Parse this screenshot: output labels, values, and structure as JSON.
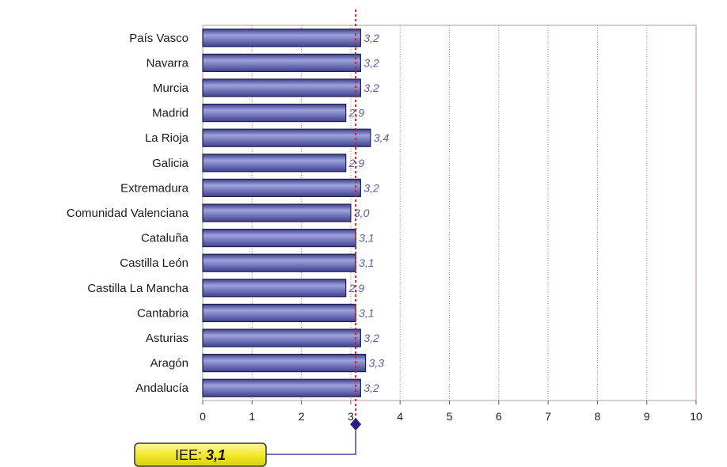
{
  "chart_data": {
    "type": "bar",
    "orientation": "horizontal",
    "categories": [
      "País Vasco",
      "Navarra",
      "Murcia",
      "Madrid",
      "La Rioja",
      "Galicia",
      "Extremadura",
      "Comunidad Valenciana",
      "Cataluña",
      "Castilla León",
      "Castilla La Mancha",
      "Cantabria",
      "Asturias",
      "Aragón",
      "Andalucía"
    ],
    "values": [
      3.2,
      3.2,
      3.2,
      2.9,
      3.4,
      2.9,
      3.2,
      3.0,
      3.1,
      3.1,
      2.9,
      3.1,
      3.2,
      3.3,
      3.2
    ],
    "value_labels": [
      "3,2",
      "3,2",
      "3,2",
      "2,9",
      "3,4",
      "2,9",
      "3,2",
      "3,0",
      "3,1",
      "3,1",
      "2,9",
      "3,1",
      "3,2",
      "3,3",
      "3,2"
    ],
    "xlim": [
      0,
      10
    ],
    "x_ticks": [
      "0",
      "1",
      "2",
      "3",
      "4",
      "5",
      "6",
      "7",
      "8",
      "9",
      "10"
    ],
    "grid": true,
    "reference_line": {
      "value": 3.1,
      "label_prefix": "IEE:",
      "label_value": "3,1"
    },
    "colors": {
      "bar_fill": "#5a5faa",
      "bar_highlight": "#9ea2dd",
      "bar_stroke": "#202050",
      "grid": "#b08080",
      "reference_line": "#cc2222",
      "marker": "#2a1a8a",
      "callout_fill": "#f2ea2a",
      "callout_stroke": "#333333"
    }
  }
}
